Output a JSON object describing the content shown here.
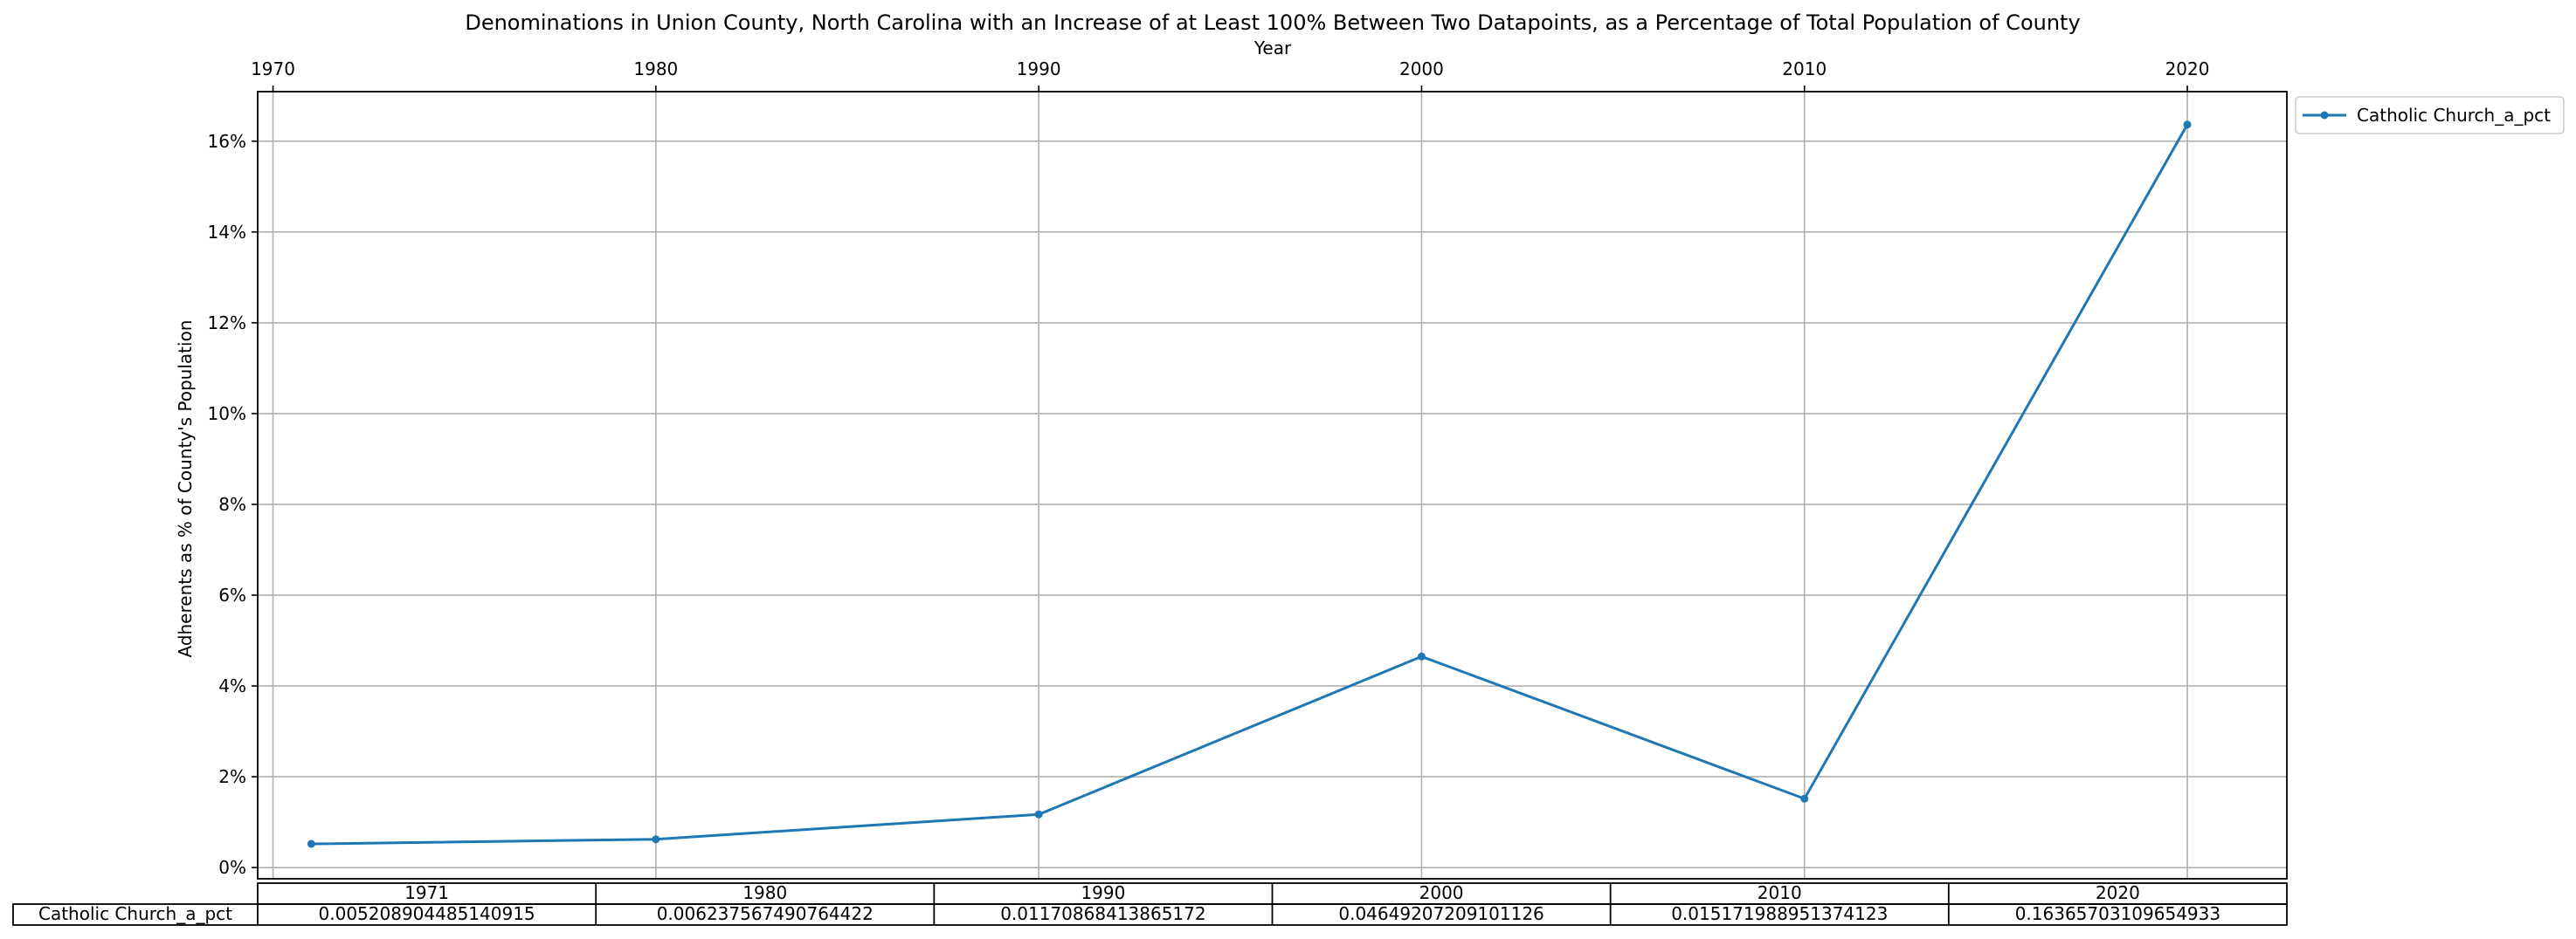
{
  "chart_data": {
    "type": "line",
    "title": "Denominations in Union County, North Carolina with an Increase of at Least 100% Between Two Datapoints, as a Percentage of Total Population of County",
    "xlabel": "Year",
    "ylabel": "Adherents as % of County's Population",
    "x_ticks": [
      "1970",
      "1980",
      "1990",
      "2000",
      "2010",
      "2020"
    ],
    "y_ticks": [
      "0%",
      "2%",
      "4%",
      "6%",
      "8%",
      "10%",
      "12%",
      "14%",
      "16%"
    ],
    "xlim": [
      1969.6,
      2022.6
    ],
    "ylim": [
      -0.00247,
      0.17092
    ],
    "grid": true,
    "legend_position": "outside-top-right",
    "x": [
      1971,
      1980,
      1990,
      2000,
      2010,
      2020
    ],
    "series": [
      {
        "name": "Catholic Church_a_pct",
        "color": "#1f77b4",
        "values": [
          0.005208904485140915,
          0.006237567490764422,
          0.01170868413865172,
          0.04649207209101126,
          0.01517198895137412,
          0.16365703109654933
        ]
      }
    ],
    "table": {
      "columns": [
        "1971",
        "1980",
        "1990",
        "2000",
        "2010",
        "2020"
      ],
      "row_label": "Catholic Church_a_pct",
      "cells": [
        "0.005208904485140915",
        "0.006237567490764422",
        "0.01170868413865172",
        "0.04649207209101126",
        "0.015171988951374123",
        "0.16365703109654933"
      ]
    }
  }
}
